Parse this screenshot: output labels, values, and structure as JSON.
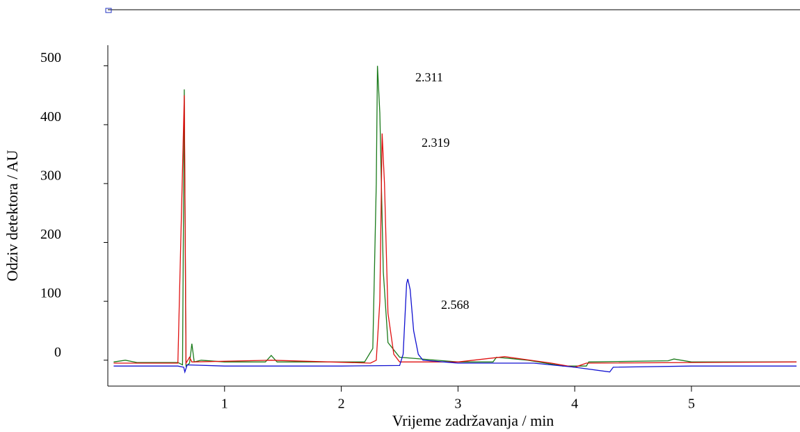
{
  "chart_data": {
    "type": "line",
    "xlabel": "Vrijeme zadržavanja / min",
    "ylabel": "Odziv detektora / AU",
    "annotations": [
      "2.311",
      "2.319",
      "2.568"
    ],
    "xlim": [
      0,
      5.93
    ],
    "ylim": [
      -44,
      535
    ],
    "xticks": [
      1,
      2,
      3,
      4,
      5
    ],
    "yticks": [
      0,
      100,
      200,
      300,
      400,
      500
    ],
    "series": [
      {
        "color": "#1a7a1a",
        "x": [
          0.05,
          0.15,
          0.25,
          0.6,
          0.64,
          0.655,
          0.67,
          0.7,
          0.72,
          0.74,
          0.8,
          1.0,
          1.35,
          1.4,
          1.45,
          2.2,
          2.27,
          2.3,
          2.31,
          2.33,
          2.36,
          2.4,
          2.5,
          3.0,
          3.3,
          3.33,
          3.6,
          3.9,
          4.1,
          4.12,
          4.8,
          4.85,
          5.0,
          5.9
        ],
        "values": [
          -3,
          0,
          -4,
          -4,
          -8,
          460,
          -10,
          -5,
          28,
          -3,
          0,
          -3,
          -3,
          8,
          -3,
          -3,
          20,
          300,
          500,
          420,
          150,
          30,
          5,
          -3,
          -3,
          5,
          0,
          -10,
          -10,
          -3,
          -1,
          2,
          -3,
          -3
        ]
      },
      {
        "color": "#e01010",
        "x": [
          0.05,
          0.6,
          0.655,
          0.67,
          0.7,
          0.72,
          1.4,
          2.25,
          2.3,
          2.33,
          2.35,
          2.37,
          2.4,
          2.45,
          2.5,
          3.0,
          3.4,
          3.8,
          4.0,
          4.1,
          5.9
        ],
        "values": [
          -5,
          -5,
          450,
          -5,
          5,
          -3,
          0,
          -5,
          0,
          100,
          385,
          300,
          80,
          10,
          -3,
          -3,
          6,
          -5,
          -12,
          -5,
          -3
        ]
      },
      {
        "color": "#1010d0",
        "x": [
          0.05,
          0.6,
          0.65,
          0.66,
          0.68,
          1.0,
          2.0,
          2.5,
          2.53,
          2.56,
          2.57,
          2.59,
          2.62,
          2.66,
          2.7,
          3.0,
          3.6,
          3.65,
          4.0,
          4.3,
          4.33,
          5.0,
          5.9
        ],
        "values": [
          -10,
          -10,
          -12,
          -20,
          -8,
          -10,
          -10,
          -9,
          10,
          130,
          138,
          120,
          50,
          10,
          0,
          -5,
          -5,
          -5,
          -12,
          -20,
          -12,
          -10,
          -10
        ]
      }
    ]
  }
}
